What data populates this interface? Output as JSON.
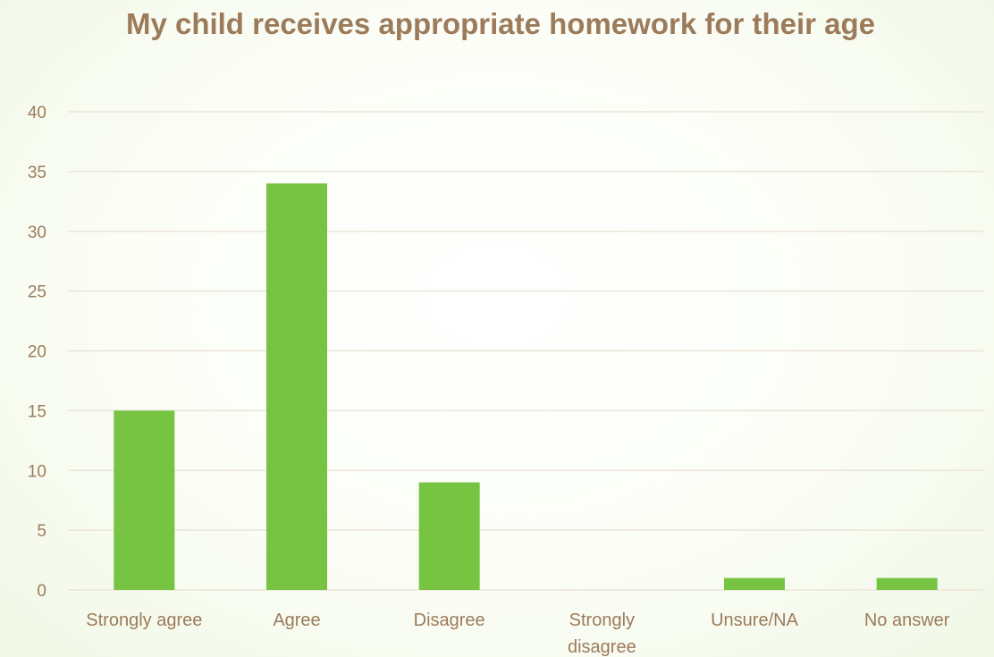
{
  "chart_data": {
    "type": "bar",
    "title": "My child receives appropriate homework for their age",
    "categories": [
      "Strongly agree",
      "Agree",
      "Disagree",
      "Strongly disagree",
      "Unsure/NA",
      "No answer"
    ],
    "category_lines": [
      [
        "Strongly agree"
      ],
      [
        "Agree"
      ],
      [
        "Disagree"
      ],
      [
        "Strongly",
        "disagree"
      ],
      [
        "Unsure/NA"
      ],
      [
        "No answer"
      ]
    ],
    "values": [
      15,
      34,
      9,
      0,
      1,
      1
    ],
    "ylim": [
      0,
      40
    ],
    "yticks": [
      0,
      5,
      10,
      15,
      20,
      25,
      30,
      35,
      40
    ],
    "grid": true,
    "legend": "none",
    "xlabel": "",
    "ylabel": "",
    "colors": {
      "bar": "#76c442",
      "title": "#9c7b5b",
      "tick_label": "#9c7b5b",
      "grid": "#ece4d8"
    }
  }
}
